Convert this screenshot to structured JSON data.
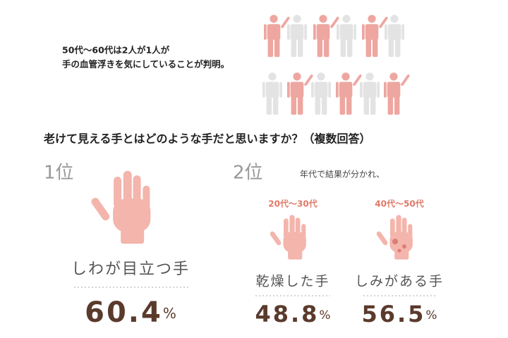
{
  "header": {
    "lines": [
      "50代～60代は2人が1人が",
      "手の血管浮きを気にしていることが判明。"
    ]
  },
  "question": "老けて見える手とはどのような手だと思いますか？（複数回答）",
  "rank1": {
    "rank": "1位",
    "label": "しわが目立つ手",
    "value": 60.4,
    "unit": "%"
  },
  "rank2": {
    "rank": "2位",
    "note": "年代で結果が分かれ、",
    "groups": [
      {
        "age": "20代～30代",
        "label": "乾燥した手",
        "value": 48.8,
        "unit": "%"
      },
      {
        "age": "40代～50代",
        "label": "しみがある手",
        "value": 56.5,
        "unit": "%"
      }
    ]
  }
}
